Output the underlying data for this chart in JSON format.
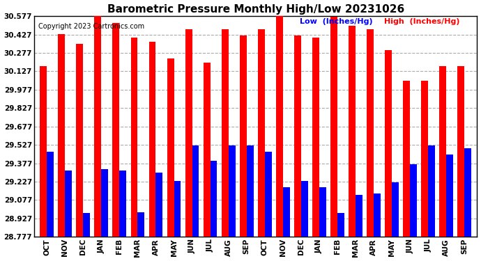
{
  "title": "Barometric Pressure Monthly High/Low 20231026",
  "copyright": "Copyright 2023 Cartronics.com",
  "legend_low": "Low  (Inches/Hg)",
  "legend_high": "High  (Inches/Hg)",
  "months": [
    "OCT",
    "NOV",
    "DEC",
    "JAN",
    "FEB",
    "MAR",
    "APR",
    "MAY",
    "JUN",
    "JUL",
    "AUG",
    "SEP",
    "OCT",
    "NOV",
    "DEC",
    "JAN",
    "FEB",
    "MAR",
    "APR",
    "MAY",
    "JUN",
    "JUL",
    "AUG",
    "SEP"
  ],
  "high_values": [
    30.17,
    30.43,
    30.35,
    30.63,
    30.52,
    30.4,
    30.37,
    30.23,
    30.47,
    30.2,
    30.47,
    30.42,
    30.47,
    30.6,
    30.42,
    30.4,
    30.57,
    30.5,
    30.47,
    30.3,
    30.05,
    30.05,
    30.17,
    30.17
  ],
  "low_values": [
    29.47,
    29.32,
    28.97,
    29.33,
    29.32,
    28.98,
    29.3,
    29.23,
    29.52,
    29.4,
    29.52,
    29.52,
    29.47,
    29.18,
    29.23,
    29.18,
    28.97,
    29.12,
    29.13,
    29.22,
    29.37,
    29.52,
    29.45,
    29.5
  ],
  "bar_color_high": "#ff0000",
  "bar_color_low": "#0000ff",
  "background_color": "#ffffff",
  "grid_color": "#aaaaaa",
  "yticks": [
    28.777,
    28.927,
    29.077,
    29.227,
    29.377,
    29.527,
    29.677,
    29.827,
    29.977,
    30.127,
    30.277,
    30.427,
    30.577
  ],
  "ymin": 28.777,
  "ymax": 30.577,
  "title_fontsize": 11,
  "tick_fontsize": 7.5,
  "copyright_fontsize": 7,
  "legend_fontsize": 8
}
